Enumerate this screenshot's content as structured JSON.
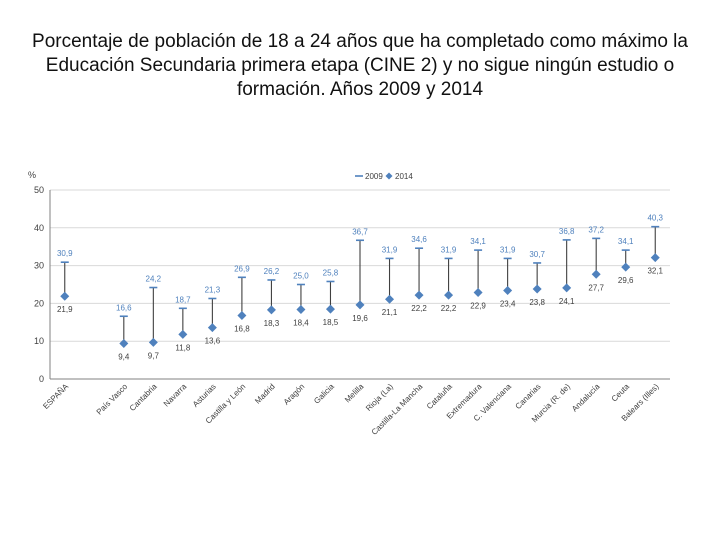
{
  "title": "Porcentaje de población de 18 a 24 años que ha completado como máximo la Educación Secundaria primera etapa (CINE 2) y no sigue ningún estudio o formación. Años 2009 y 2014",
  "colors": {
    "series_2009": "#4f81bd",
    "series_2014": "#4f81bd",
    "range_line": "#404040",
    "grid": "#d9d9d9"
  },
  "chart_data": {
    "type": "scatter",
    "title": "Porcentaje de población de 18 a 24 años que ha completado como máximo la Educación Secundaria primera etapa (CINE 2) y no sigue ningún estudio o formación. Años 2009 y 2014",
    "ylabel": "%",
    "xlabel": "",
    "ylim": [
      0,
      50
    ],
    "yticks": [
      "0",
      "10",
      "20",
      "30",
      "40",
      "50"
    ],
    "categories": [
      "ESPAÑA",
      "País Vasco",
      "Cantabria",
      "Navarra",
      "Asturias",
      "Castilla y León",
      "Madrid",
      "Aragón",
      "Galicia",
      "Melilla",
      "Rioja (La)",
      "Castilla-La Mancha",
      "Cataluña",
      "Extremadura",
      "C. Valenciana",
      "Canarias",
      "Murcia (R. de)",
      "Andalucía",
      "Ceuta",
      "Balears (Illes)"
    ],
    "gap_after_first": true,
    "series": [
      {
        "name": "2009",
        "marker": "dash",
        "values": [
          30.9,
          16.6,
          24.2,
          18.7,
          21.3,
          26.9,
          26.2,
          25.0,
          25.8,
          36.7,
          31.9,
          34.6,
          31.9,
          34.1,
          31.9,
          30.7,
          36.8,
          37.2,
          34.1,
          40.3
        ],
        "labels": [
          "30,9",
          "16,6",
          "24,2",
          "18,7",
          "21,3",
          "26,9",
          "26,2",
          "25,0",
          "25,8",
          "36,7",
          "31,9",
          "34,6",
          "31,9",
          "34,1",
          "31,9",
          "30,7",
          "36,8",
          "37,2",
          "34,1",
          "40,3"
        ]
      },
      {
        "name": "2014",
        "marker": "diamond",
        "values": [
          21.9,
          9.4,
          9.7,
          11.8,
          13.6,
          16.8,
          18.3,
          18.4,
          18.5,
          19.6,
          21.1,
          22.2,
          22.2,
          22.9,
          23.4,
          23.8,
          24.1,
          27.7,
          29.6,
          32.1
        ],
        "labels": [
          "21,9",
          "9,4",
          "9,7",
          "11,8",
          "13,6",
          "16,8",
          "18,3",
          "18,4",
          "18,5",
          "19,6",
          "21,1",
          "22,2",
          "22,2",
          "22,9",
          "23,4",
          "23,8",
          "24,1",
          "27,7",
          "29,6",
          "32,1"
        ]
      }
    ],
    "legend": {
      "position": "top-right",
      "entries": [
        "2009",
        "2014"
      ]
    },
    "grid": true
  }
}
